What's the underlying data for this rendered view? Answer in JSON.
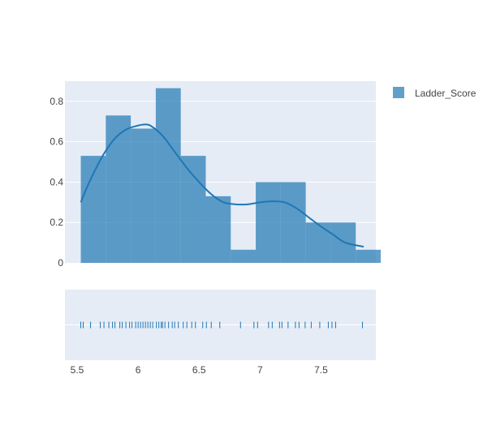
{
  "chart_data": {
    "type": "bar",
    "legend": {
      "position": "top-right",
      "entries": [
        "Ladder_Score"
      ]
    },
    "colors": {
      "bar": "#1f77b4",
      "curve": "#1f77b4",
      "rug": "#1f77b4",
      "plot_bg": "#e5ecf6",
      "grid": "#ffffff",
      "tick_text": "#444444"
    },
    "x_range": [
      5.4,
      7.95
    ],
    "histogram": {
      "name": "Ladder_Score",
      "bin_edges": [
        5.53,
        5.735,
        5.94,
        6.145,
        6.35,
        6.555,
        6.76,
        6.965,
        7.17,
        7.375,
        7.58,
        7.785,
        7.99
      ],
      "density": [
        0.53,
        0.73,
        0.665,
        0.865,
        0.53,
        0.33,
        0.065,
        0.4,
        0.4,
        0.2,
        0.2,
        0.065
      ],
      "y_range": [
        0,
        0.9
      ],
      "y_ticks": [
        0,
        0.2,
        0.4,
        0.6,
        0.8
      ],
      "y_tick_labels": [
        "0",
        "0.2",
        "0.4",
        "0.6",
        "0.8"
      ]
    },
    "kde_curve": {
      "x": [
        5.53,
        5.6,
        5.7,
        5.8,
        5.9,
        6.0,
        6.05,
        6.1,
        6.2,
        6.3,
        6.4,
        6.5,
        6.6,
        6.7,
        6.8,
        6.9,
        7.0,
        7.1,
        7.2,
        7.3,
        7.4,
        7.5,
        7.6,
        7.7,
        7.85
      ],
      "y": [
        0.3,
        0.4,
        0.52,
        0.61,
        0.66,
        0.68,
        0.685,
        0.68,
        0.63,
        0.55,
        0.47,
        0.4,
        0.34,
        0.3,
        0.29,
        0.29,
        0.3,
        0.305,
        0.3,
        0.27,
        0.225,
        0.18,
        0.14,
        0.1,
        0.08
      ]
    },
    "rug": {
      "values": [
        5.53,
        5.55,
        5.61,
        5.69,
        5.72,
        5.76,
        5.79,
        5.81,
        5.85,
        5.87,
        5.9,
        5.93,
        5.95,
        5.98,
        6.0,
        6.02,
        6.04,
        6.06,
        6.08,
        6.1,
        6.12,
        6.15,
        6.17,
        6.19,
        6.2,
        6.22,
        6.25,
        6.28,
        6.3,
        6.33,
        6.37,
        6.4,
        6.44,
        6.47,
        6.53,
        6.56,
        6.6,
        6.67,
        6.84,
        6.95,
        6.98,
        7.07,
        7.1,
        7.16,
        7.18,
        7.23,
        7.29,
        7.32,
        7.37,
        7.42,
        7.49,
        7.56,
        7.59,
        7.62,
        7.84
      ]
    },
    "x_ticks": [
      5.5,
      6,
      6.5,
      7,
      7.5
    ],
    "x_tick_labels": [
      "5.5",
      "6",
      "6.5",
      "7",
      "7.5"
    ]
  }
}
